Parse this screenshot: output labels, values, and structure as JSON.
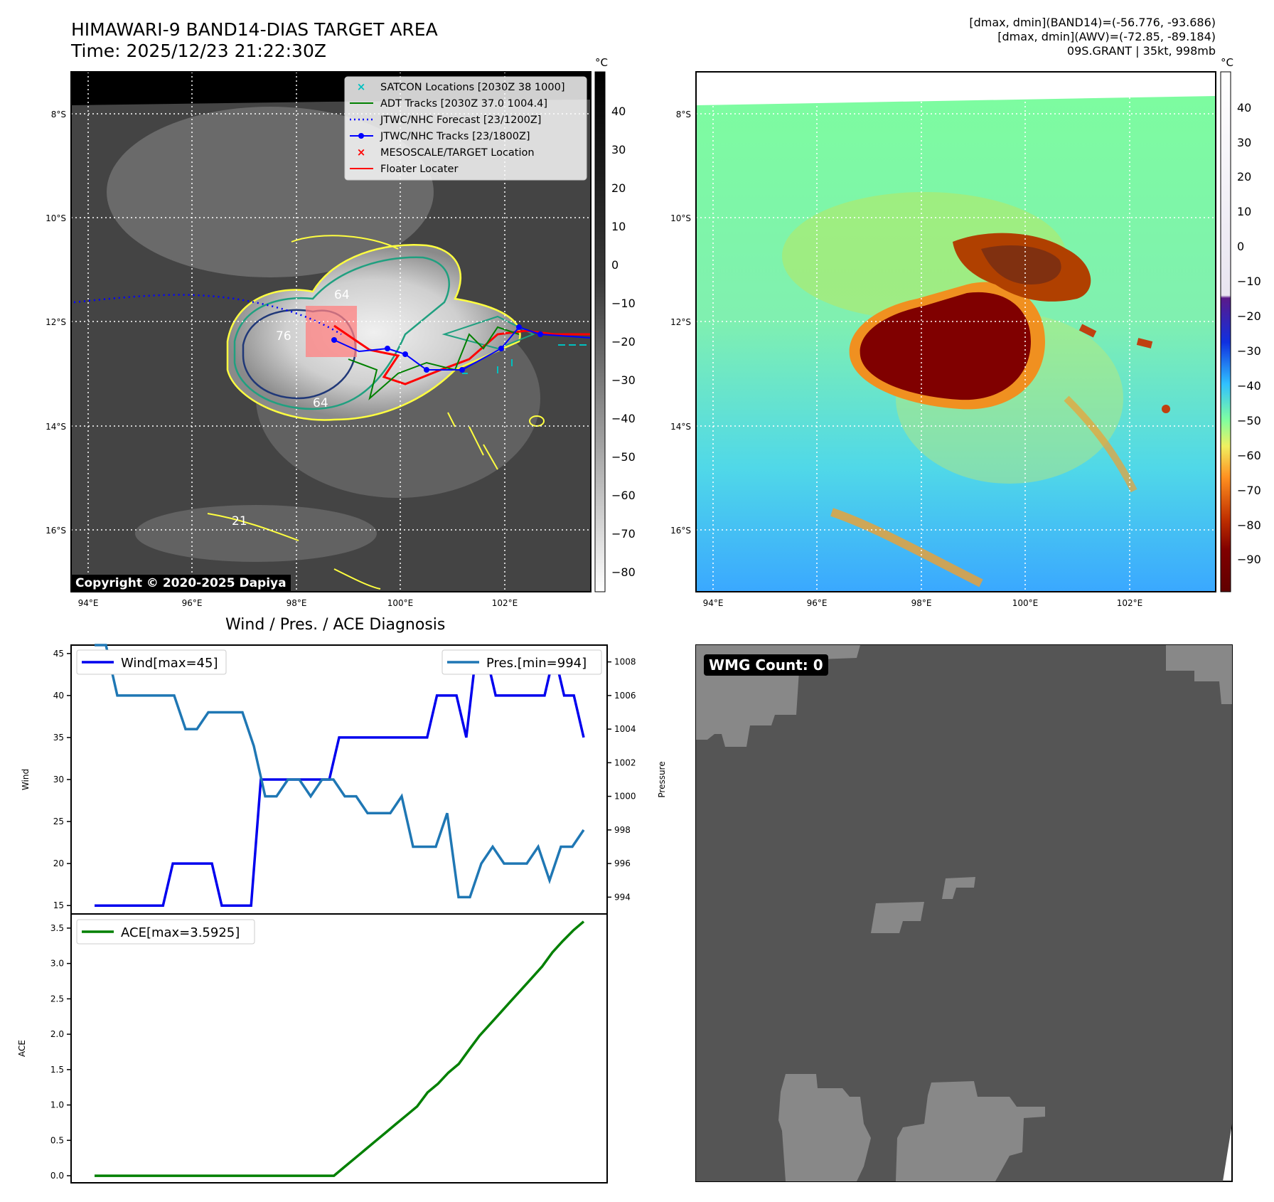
{
  "header": {
    "title": "HIMAWARI-9 BAND14-DIAS TARGET AREA",
    "time": "Time: 2025/12/23 21:22:30Z",
    "info_lines": [
      "[dmax, dmin](BAND14)=(-56.776, -93.686)",
      "[dmax, dmin](AWV)=(-72.85, -89.184)",
      "09S.GRANT | 35kt, 998mb"
    ]
  },
  "map": {
    "lat_labels": [
      "8°S",
      "10°S",
      "12°S",
      "14°S",
      "16°S"
    ],
    "lon_labels": [
      "94°E",
      "96°E",
      "98°E",
      "100°E",
      "102°E"
    ],
    "copyright": "Copyright © 2020-2025 Dapiya",
    "contour_labels": [
      "64",
      "76",
      "64",
      "21"
    ],
    "legend": [
      {
        "label": "SATCON Locations [2030Z 38 1000]",
        "color": "#00c0c0",
        "kind": "x"
      },
      {
        "label": "ADT Tracks [2030Z 37.0 1004.4]",
        "color": "#008000",
        "kind": "line"
      },
      {
        "label": "JTWC/NHC Forecast [23/1200Z]",
        "color": "#0000ff",
        "kind": "dotted"
      },
      {
        "label": "JTWC/NHC Tracks [23/1800Z]",
        "color": "#0000ff",
        "kind": "line-dot"
      },
      {
        "label": "MESOSCALE/TARGET Location",
        "color": "#ff0000",
        "kind": "x"
      },
      {
        "label": "Floater Locater",
        "color": "#ff0000",
        "kind": "line"
      }
    ],
    "colorbar_gray": {
      "unit": "°C",
      "ticks": [
        "40",
        "30",
        "20",
        "10",
        "0",
        "−10",
        "−20",
        "−30",
        "−40",
        "−50",
        "−60",
        "−70",
        "−80"
      ]
    },
    "colorbar_awv": {
      "unit": "°C",
      "ticks": [
        "40",
        "30",
        "20",
        "10",
        "0",
        "−10",
        "−20",
        "−30",
        "−40",
        "−50",
        "−60",
        "−70",
        "−80",
        "−90"
      ]
    }
  },
  "diag": {
    "title": "Wind / Pres. / ACE Diagnosis",
    "wind_ylabel": "Wind",
    "pressure_ylabel": "Pressure",
    "ace_ylabel": "ACE",
    "wind_ticks": [
      "45",
      "40",
      "35",
      "30",
      "25",
      "20",
      "15"
    ],
    "pressure_ticks": [
      "1008",
      "1006",
      "1004",
      "1002",
      "1000",
      "998",
      "996",
      "994"
    ],
    "ace_ticks": [
      "3.5",
      "3.0",
      "2.5",
      "2.0",
      "1.5",
      "1.0",
      "0.5",
      "0.0"
    ],
    "wind_legend": "Wind[max=45]",
    "pressure_legend": "Pres.[min=994]",
    "ace_legend": "ACE[max=3.5925]"
  },
  "wmg": {
    "label": "WMG Count: 0"
  },
  "colors": {
    "wind": "#0000ee",
    "pressure": "#1f77b4",
    "ace": "#008000",
    "wmg_bg": "#555555",
    "wmg_patch": "#888888"
  },
  "chart_data": [
    {
      "type": "line",
      "title": "Wind / Pres. / ACE Diagnosis",
      "ylabel": "Wind",
      "ylim": [
        14,
        46
      ],
      "series": [
        {
          "name": "Wind[max=45]",
          "values": [
            15,
            15,
            15,
            15,
            15,
            15,
            15,
            15,
            20,
            20,
            20,
            20,
            20,
            15,
            15,
            15,
            15,
            30,
            30,
            30,
            30,
            30,
            30,
            30,
            30,
            35,
            35,
            35,
            35,
            35,
            35,
            35,
            35,
            35,
            35,
            40,
            40,
            40,
            35,
            45,
            45,
            40,
            40,
            40,
            40,
            40,
            40,
            45,
            40,
            40,
            35
          ]
        }
      ]
    },
    {
      "type": "line",
      "ylabel": "Pressure",
      "ylim": [
        993,
        1009
      ],
      "series": [
        {
          "name": "Pres.[min=994]",
          "values": [
            1009,
            1009,
            1006,
            1006,
            1006,
            1006,
            1006,
            1006,
            1004,
            1004,
            1005,
            1005,
            1005,
            1005,
            1003,
            1000,
            1000,
            1001,
            1001,
            1000,
            1001,
            1001,
            1000,
            1000,
            999,
            999,
            999,
            1000,
            997,
            997,
            997,
            999,
            994,
            994,
            996,
            997,
            996,
            996,
            996,
            997,
            995,
            997,
            997,
            998
          ]
        }
      ]
    },
    {
      "type": "line",
      "ylabel": "ACE",
      "ylim": [
        -0.1,
        3.7
      ],
      "series": [
        {
          "name": "ACE[max=3.5925]",
          "values": [
            0,
            0,
            0,
            0,
            0,
            0,
            0,
            0,
            0,
            0,
            0,
            0,
            0,
            0,
            0,
            0,
            0,
            0,
            0,
            0,
            0,
            0,
            0,
            0,
            0.1225,
            0.245,
            0.3675,
            0.49,
            0.6125,
            0.735,
            0.8575,
            0.98,
            1.1775,
            1.3,
            1.4575,
            1.58,
            1.7825,
            1.98,
            2.1425,
            2.305,
            2.4675,
            2.63,
            2.7925,
            2.955,
            3.1575,
            3.3175,
            3.4675,
            3.5925
          ]
        }
      ]
    }
  ]
}
